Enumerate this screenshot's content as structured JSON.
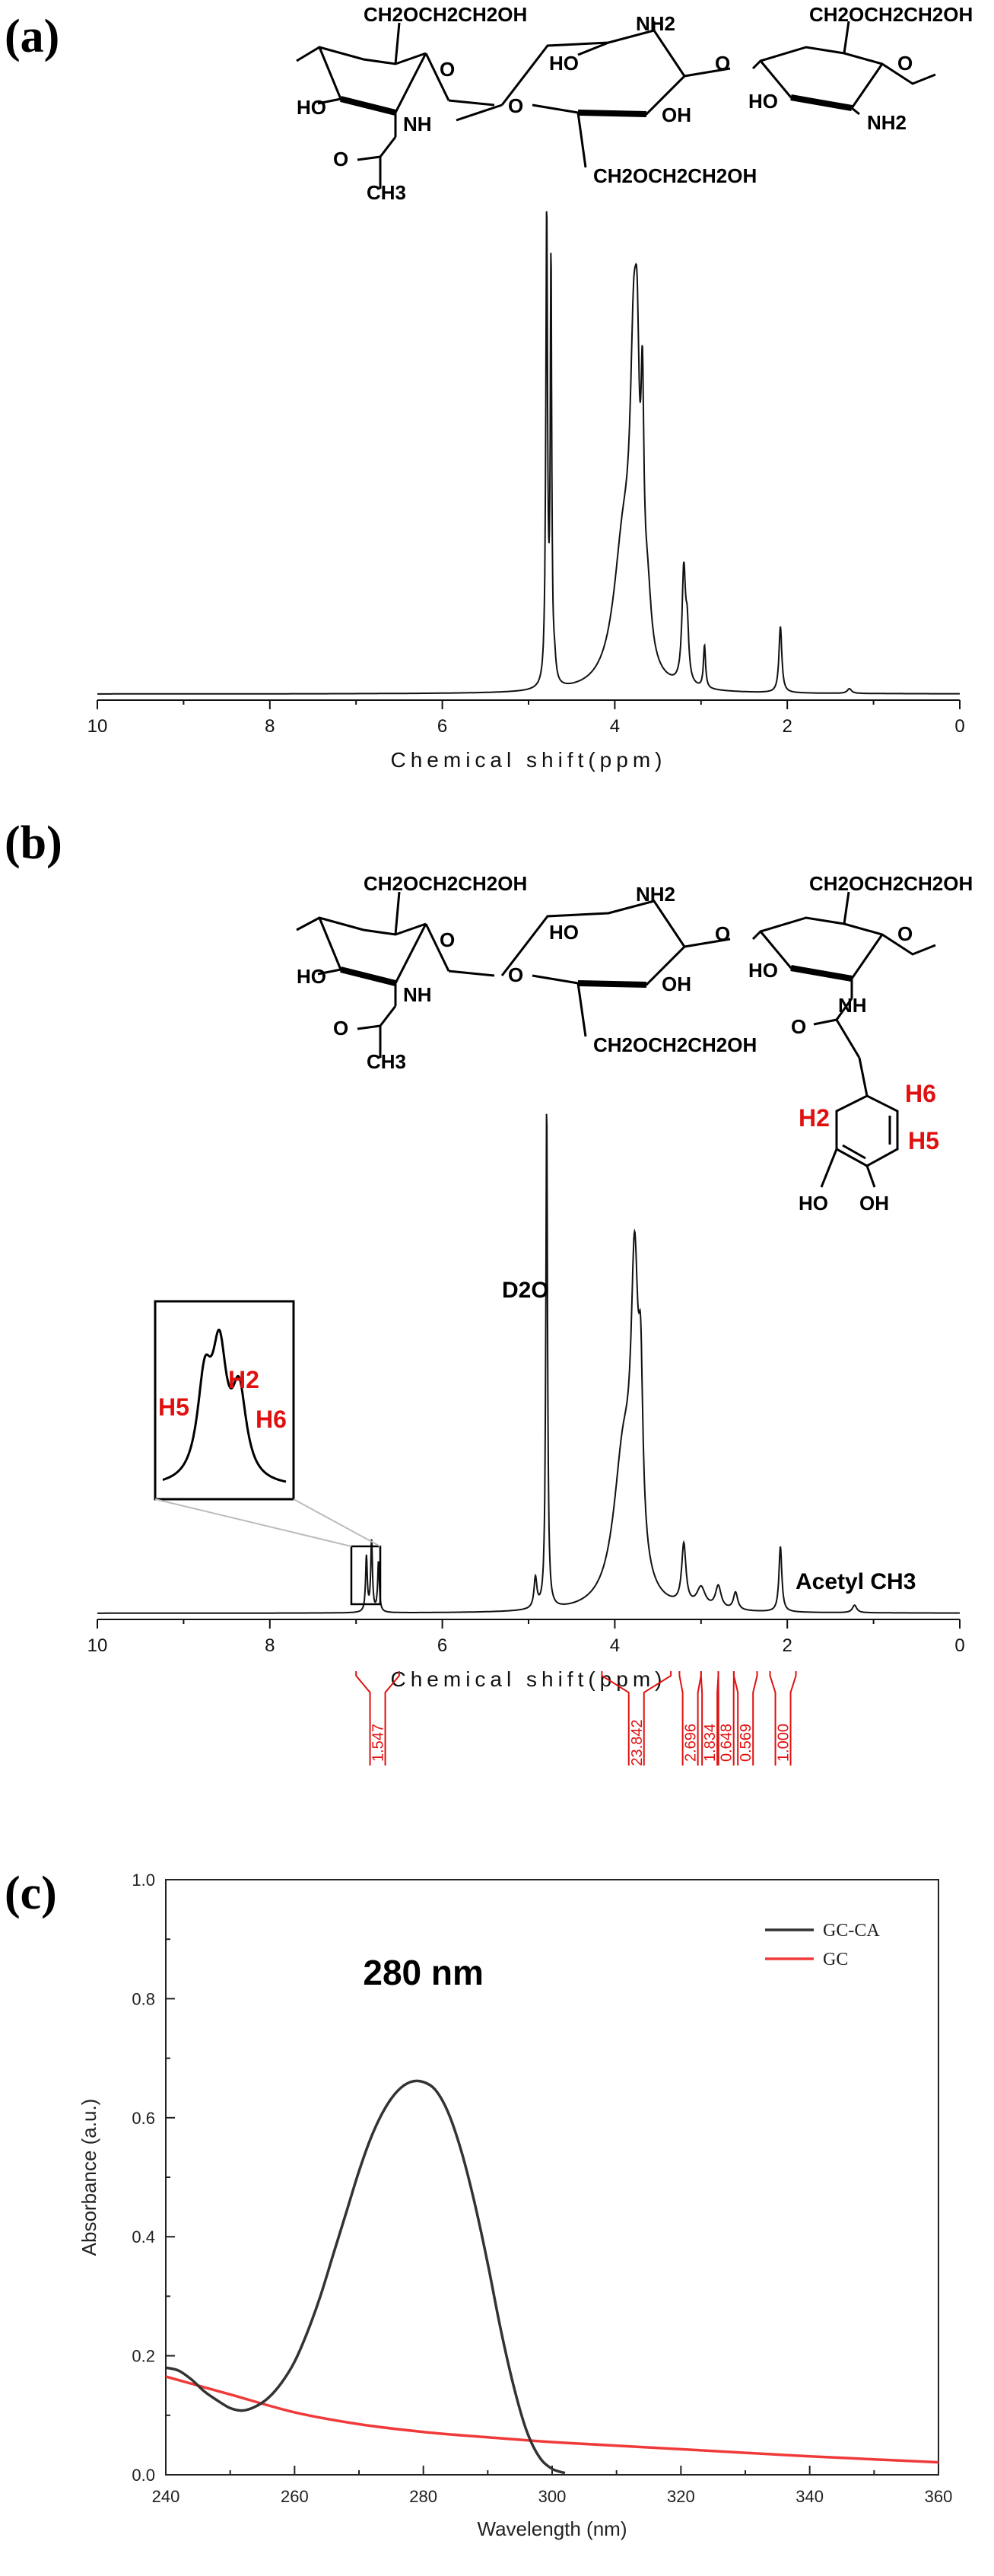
{
  "chart_data": [
    {
      "panel": "(a)",
      "type": "line",
      "xlabel": "Chemical shift(ppm)",
      "xlim": [
        10,
        0
      ],
      "x_ticks": [
        "10",
        "8",
        "6",
        "4",
        "2",
        "0"
      ],
      "structure_labels": {
        "substituent": "CH2OCH2CH2OH",
        "amine": "NH2",
        "amide": "NH",
        "hydroxyl": "HO",
        "hydroxyl_r": "OH",
        "ring_o": "O",
        "carbonyl_o": "O",
        "methyl": "CH3"
      },
      "series": [
        {
          "peaks": [
            {
              "x": 4.79,
              "h": 1.0,
              "w": 0.012
            },
            {
              "x": 4.74,
              "h": 0.88,
              "w": 0.01
            },
            {
              "x": 4.7,
              "h": 0.04,
              "w": 0.02
            },
            {
              "x": 3.9,
              "h": 0.3,
              "w": 0.14
            },
            {
              "x": 3.78,
              "h": 0.55,
              "w": 0.05
            },
            {
              "x": 3.74,
              "h": 0.35,
              "w": 0.03
            },
            {
              "x": 3.68,
              "h": 0.42,
              "w": 0.02
            },
            {
              "x": 3.62,
              "h": 0.12,
              "w": 0.05
            },
            {
              "x": 3.2,
              "h": 0.24,
              "w": 0.025
            },
            {
              "x": 3.16,
              "h": 0.1,
              "w": 0.02
            },
            {
              "x": 2.96,
              "h": 0.09,
              "w": 0.015
            },
            {
              "x": 2.08,
              "h": 0.14,
              "w": 0.02
            },
            {
              "x": 1.28,
              "h": 0.01,
              "w": 0.03
            }
          ]
        }
      ]
    },
    {
      "panel": "(b)",
      "type": "line",
      "xlabel": "Chemical shift(ppm)",
      "xlim": [
        10,
        0
      ],
      "x_ticks": [
        "10",
        "8",
        "6",
        "4",
        "2",
        "0"
      ],
      "annotations": {
        "solvent": "D2O",
        "acetyl": "Acetyl CH3",
        "h2": "H2",
        "h5": "H5",
        "h6": "H6"
      },
      "structure_labels": {
        "substituent": "CH2OCH2CH2OH",
        "amine": "NH2",
        "amide": "NH",
        "hydroxyl": "HO",
        "hydroxyl_r": "OH",
        "ring_o": "O",
        "carbonyl_o": "O",
        "methyl": "CH3"
      },
      "integrations": [
        {
          "value": "1.547",
          "x_from": 7.0,
          "x_to": 6.5
        },
        {
          "value": "23.842",
          "x_from": 4.15,
          "x_to": 3.35
        },
        {
          "value": "2.696",
          "x_from": 3.25,
          "x_to": 3.0
        },
        {
          "value": "1.834",
          "x_from": 3.0,
          "x_to": 2.8
        },
        {
          "value": "0.648",
          "x_from": 2.8,
          "x_to": 2.62
        },
        {
          "value": "0.569",
          "x_from": 2.62,
          "x_to": 2.35
        },
        {
          "value": "1.000",
          "x_from": 2.2,
          "x_to": 1.9
        }
      ],
      "series": [
        {
          "peaks": [
            {
              "x": 6.88,
              "h": 0.11,
              "w": 0.012
            },
            {
              "x": 6.82,
              "h": 0.14,
              "w": 0.012
            },
            {
              "x": 6.74,
              "h": 0.1,
              "w": 0.012
            },
            {
              "x": 4.92,
              "h": 0.06,
              "w": 0.02
            },
            {
              "x": 4.79,
              "h": 1.0,
              "w": 0.012
            },
            {
              "x": 3.9,
              "h": 0.3,
              "w": 0.14
            },
            {
              "x": 3.77,
              "h": 0.55,
              "w": 0.05
            },
            {
              "x": 3.7,
              "h": 0.3,
              "w": 0.03
            },
            {
              "x": 3.2,
              "h": 0.12,
              "w": 0.03
            },
            {
              "x": 3.0,
              "h": 0.04,
              "w": 0.06
            },
            {
              "x": 2.8,
              "h": 0.045,
              "w": 0.04
            },
            {
              "x": 2.6,
              "h": 0.035,
              "w": 0.03
            },
            {
              "x": 2.08,
              "h": 0.13,
              "w": 0.02
            },
            {
              "x": 1.22,
              "h": 0.015,
              "w": 0.03
            }
          ]
        }
      ]
    },
    {
      "panel": "(c)",
      "type": "line",
      "xlabel": "Wavelength (nm)",
      "ylabel": "Absorbance (a.u.)",
      "xlim": [
        240,
        360
      ],
      "ylim": [
        0.0,
        1.0
      ],
      "x_ticks": [
        "240",
        "260",
        "280",
        "300",
        "320",
        "340",
        "360"
      ],
      "y_ticks": [
        "0.0",
        "0.2",
        "0.4",
        "0.6",
        "0.8",
        "1.0"
      ],
      "peak_annotation": "280 nm",
      "legend": {
        "position": "top-right"
      },
      "series": [
        {
          "name": "GC-CA",
          "color": "#333333",
          "x": [
            240,
            242,
            244,
            246,
            248,
            250,
            252,
            254,
            256,
            258,
            260,
            262,
            264,
            266,
            268,
            270,
            272,
            274,
            276,
            278,
            280,
            282,
            284,
            286,
            288,
            290,
            292,
            294,
            296,
            298,
            300,
            302
          ],
          "y": [
            0.18,
            0.175,
            0.16,
            0.14,
            0.125,
            0.112,
            0.108,
            0.115,
            0.13,
            0.155,
            0.19,
            0.24,
            0.3,
            0.37,
            0.44,
            0.51,
            0.57,
            0.615,
            0.645,
            0.66,
            0.66,
            0.645,
            0.605,
            0.54,
            0.455,
            0.355,
            0.245,
            0.15,
            0.075,
            0.03,
            0.01,
            0.003
          ]
        },
        {
          "name": "GC",
          "color": "#f03a3a",
          "x": [
            240,
            250,
            260,
            270,
            280,
            290,
            300,
            310,
            320,
            330,
            340,
            350,
            360
          ],
          "y": [
            0.165,
            0.135,
            0.105,
            0.085,
            0.072,
            0.063,
            0.055,
            0.049,
            0.043,
            0.037,
            0.031,
            0.026,
            0.021
          ]
        }
      ]
    }
  ]
}
